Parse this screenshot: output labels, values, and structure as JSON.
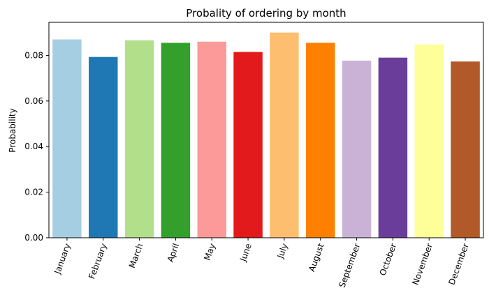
{
  "chart_data": {
    "type": "bar",
    "title": "Probality of ordering by month",
    "xlabel": "",
    "ylabel": "Probability",
    "categories": [
      "January",
      "February",
      "March",
      "April",
      "May",
      "June",
      "July",
      "August",
      "September",
      "October",
      "November",
      "December"
    ],
    "values": [
      0.087,
      0.0793,
      0.0866,
      0.0855,
      0.086,
      0.0815,
      0.09,
      0.0855,
      0.0777,
      0.079,
      0.0848,
      0.0773
    ],
    "colors": [
      "#a6cee3",
      "#1f78b4",
      "#b2df8a",
      "#33a02c",
      "#fb9a99",
      "#e31a1c",
      "#fdbf6f",
      "#ff7f00",
      "#cab2d6",
      "#6a3d9a",
      "#ffff99",
      "#b15928"
    ],
    "ylim": [
      0,
      0.0945
    ],
    "yticks": [
      "0.00",
      "0.02",
      "0.04",
      "0.06",
      "0.08"
    ],
    "grid": false,
    "legend": "none"
  }
}
